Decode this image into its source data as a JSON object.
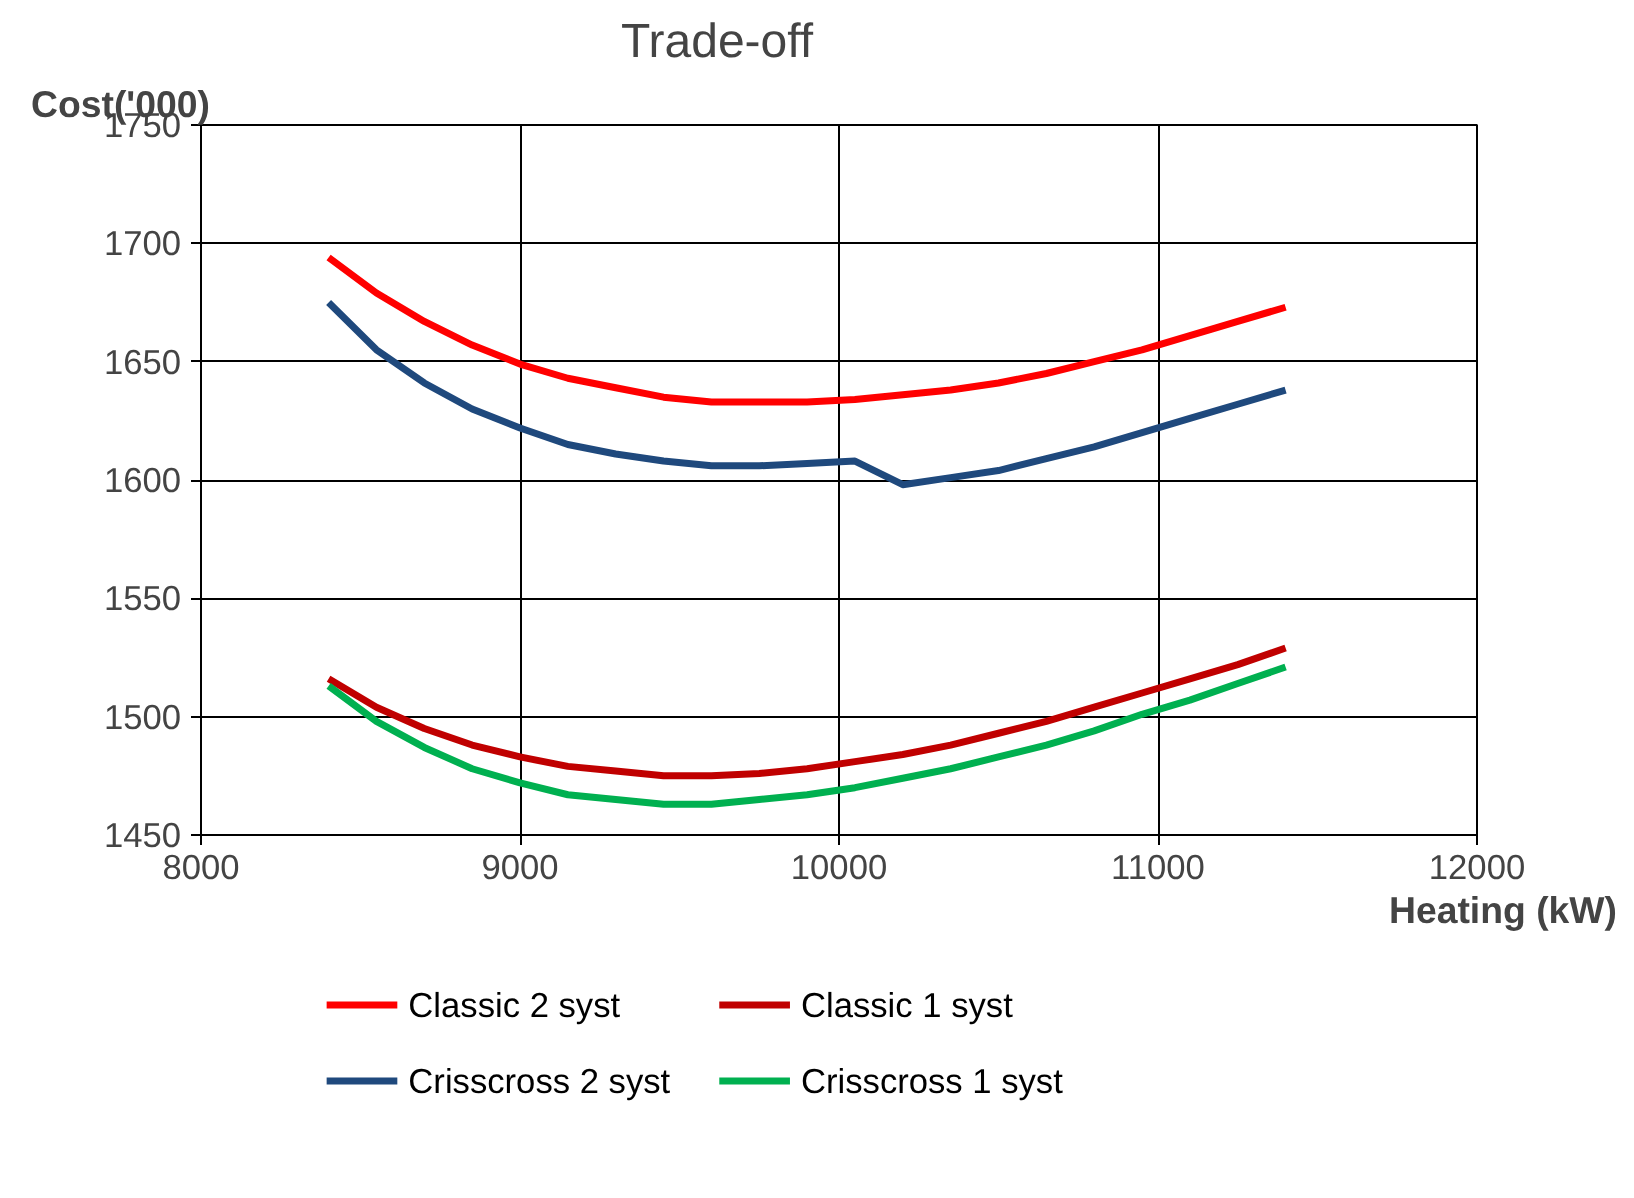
{
  "chart_data": {
    "type": "line",
    "title": "Trade-off",
    "xlabel": "Heating (kW)",
    "ylabel": "Cost('000)",
    "x": [
      8400,
      8550,
      8700,
      8850,
      9000,
      9150,
      9300,
      9450,
      9600,
      9750,
      9900,
      10050,
      10200,
      10350,
      10500,
      10650,
      10800,
      10950,
      11100,
      11250,
      11400
    ],
    "series": [
      {
        "name": "Classic 2 syst",
        "color": "#ff0000",
        "values": [
          1694,
          1679,
          1667,
          1657,
          1649,
          1643,
          1639,
          1635,
          1633,
          1633,
          1633,
          1634,
          1636,
          1638,
          1641,
          1645,
          1650,
          1655,
          1661,
          1667,
          1673
        ]
      },
      {
        "name": "Classic 1 syst",
        "color": "#c00000",
        "values": [
          1516,
          1504,
          1495,
          1488,
          1483,
          1479,
          1477,
          1475,
          1475,
          1476,
          1478,
          1481,
          1484,
          1488,
          1493,
          1498,
          1504,
          1510,
          1516,
          1522,
          1529
        ]
      },
      {
        "name": "Crisscross 2 syst",
        "color": "#1f497d",
        "values": [
          1675,
          1655,
          1641,
          1630,
          1622,
          1615,
          1611,
          1608,
          1606,
          1606,
          1607,
          1608,
          1598,
          1601,
          1604,
          1609,
          1614,
          1620,
          1626,
          1632,
          1638
        ]
      },
      {
        "name": "Crisscross 1 syst",
        "color": "#00b050",
        "values": [
          1513,
          1498,
          1487,
          1478,
          1472,
          1467,
          1465,
          1463,
          1463,
          1465,
          1467,
          1470,
          1474,
          1478,
          1483,
          1488,
          1494,
          1501,
          1507,
          1514,
          1521
        ]
      }
    ],
    "xlim": [
      8000,
      12000
    ],
    "ylim": [
      1450,
      1750
    ],
    "xticks": [
      8000,
      9000,
      10000,
      11000,
      12000
    ],
    "yticks": [
      1450,
      1500,
      1550,
      1600,
      1650,
      1700,
      1750
    ],
    "grid": true,
    "legend": "bottom",
    "marker": "none",
    "line_style": "solid"
  }
}
